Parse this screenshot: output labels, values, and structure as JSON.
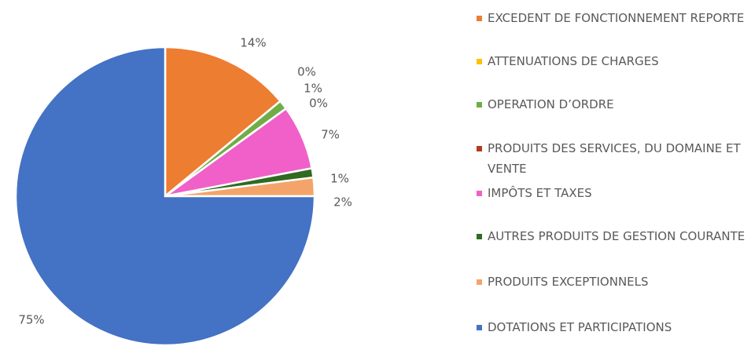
{
  "chart_data": {
    "type": "pie",
    "categories": [
      "EXCEDENT DE FONCTIONNEMENT REPORTE",
      "ATTENUATIONS DE CHARGES",
      "OPERATION D’ORDRE",
      "PRODUITS DES SERVICES, DU DOMAINE ET VENTE",
      "IMPÔTS ET TAXES",
      "AUTRES PRODUITS DE GESTION COURANTE",
      "PRODUITS EXCEPTIONNELS",
      "DOTATIONS ET PARTICIPATIONS"
    ],
    "values": [
      14,
      0,
      1,
      0,
      7,
      1,
      2,
      75
    ],
    "value_labels": [
      "14%",
      "0%",
      "1%",
      "0%",
      "7%",
      "1%",
      "2%",
      "75%"
    ],
    "colors": [
      "#ed7d31",
      "#ffc000",
      "#70ad47",
      "#b03a22",
      "#f060c8",
      "#2f6b22",
      "#f4a46a",
      "#4472c4"
    ],
    "legend": "right"
  }
}
